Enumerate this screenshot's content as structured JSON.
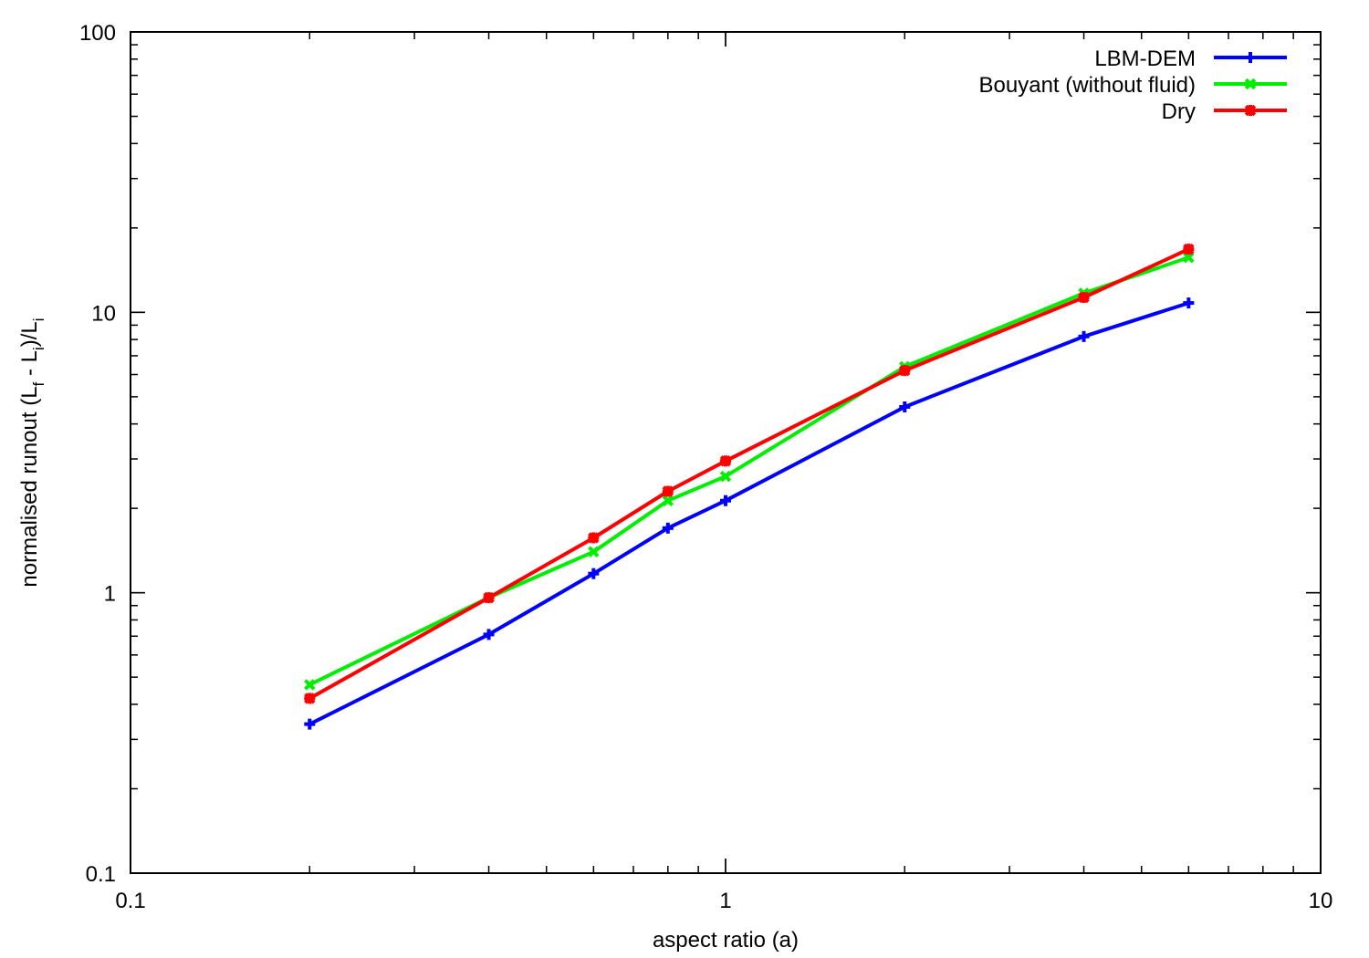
{
  "chart_data": {
    "type": "line",
    "x_scale": "log",
    "y_scale": "log",
    "xlim": [
      0.1,
      10
    ],
    "ylim": [
      0.1,
      100
    ],
    "x_ticks": [
      "0.1",
      "1",
      "10"
    ],
    "y_ticks": [
      "0.1",
      "1",
      "10",
      "100"
    ],
    "xlabel": "aspect ratio (a)",
    "ylabel": {
      "parts": [
        {
          "t": "normalised runout (L"
        },
        {
          "t": "f",
          "sub": true
        },
        {
          "t": " - L"
        },
        {
          "t": "i",
          "sub": true
        },
        {
          "t": ")/L"
        },
        {
          "t": "i",
          "sub": true
        }
      ]
    },
    "grid": false,
    "legend_position": "top-right",
    "series": [
      {
        "name": "LBM-DEM",
        "color": "#0000ff",
        "marker": "plus",
        "x": [
          0.2,
          0.4,
          0.6,
          0.8,
          1.0,
          2.0,
          4.0,
          6.0
        ],
        "y": [
          0.34,
          0.71,
          1.17,
          1.7,
          2.13,
          4.6,
          8.2,
          10.8
        ]
      },
      {
        "name": "Bouyant (without fluid)",
        "color": "#00ee00",
        "marker": "cross",
        "x": [
          0.2,
          0.4,
          0.6,
          0.8,
          1.0,
          2.0,
          4.0,
          6.0
        ],
        "y": [
          0.47,
          0.96,
          1.4,
          2.13,
          2.6,
          6.4,
          11.7,
          15.7
        ]
      },
      {
        "name": "Dry",
        "color": "#ff0000",
        "marker": "star",
        "x": [
          0.2,
          0.4,
          0.6,
          0.8,
          1.0,
          2.0,
          4.0,
          6.0
        ],
        "y": [
          0.42,
          0.96,
          1.57,
          2.3,
          2.95,
          6.2,
          11.3,
          16.8
        ]
      }
    ]
  }
}
